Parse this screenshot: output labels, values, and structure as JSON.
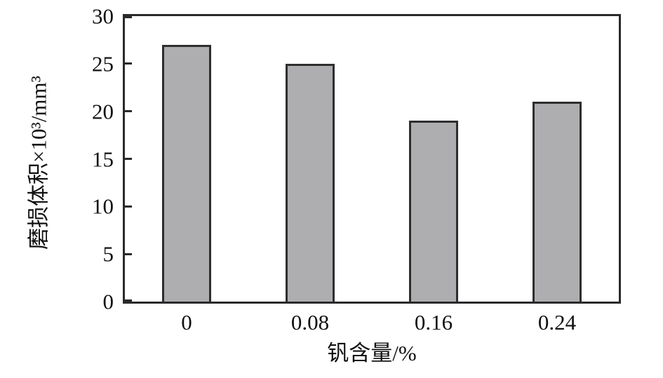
{
  "chart_data": {
    "type": "bar",
    "title": "",
    "categories": [
      "0",
      "0.08",
      "0.16",
      "0.24"
    ],
    "values": [
      27,
      25,
      19,
      21
    ],
    "xlabel": "钒含量/%",
    "ylabel": "磨损体积×10³/mm³",
    "ylim": [
      0,
      30
    ],
    "yticks": [
      0,
      5,
      10,
      15,
      20,
      25,
      30
    ],
    "grid": false,
    "legend": "none",
    "bar_fill": "#aeadb0",
    "bar_border": "#2e2e2e",
    "axis_color": "#2a2a2a",
    "text_color": "#111111"
  }
}
